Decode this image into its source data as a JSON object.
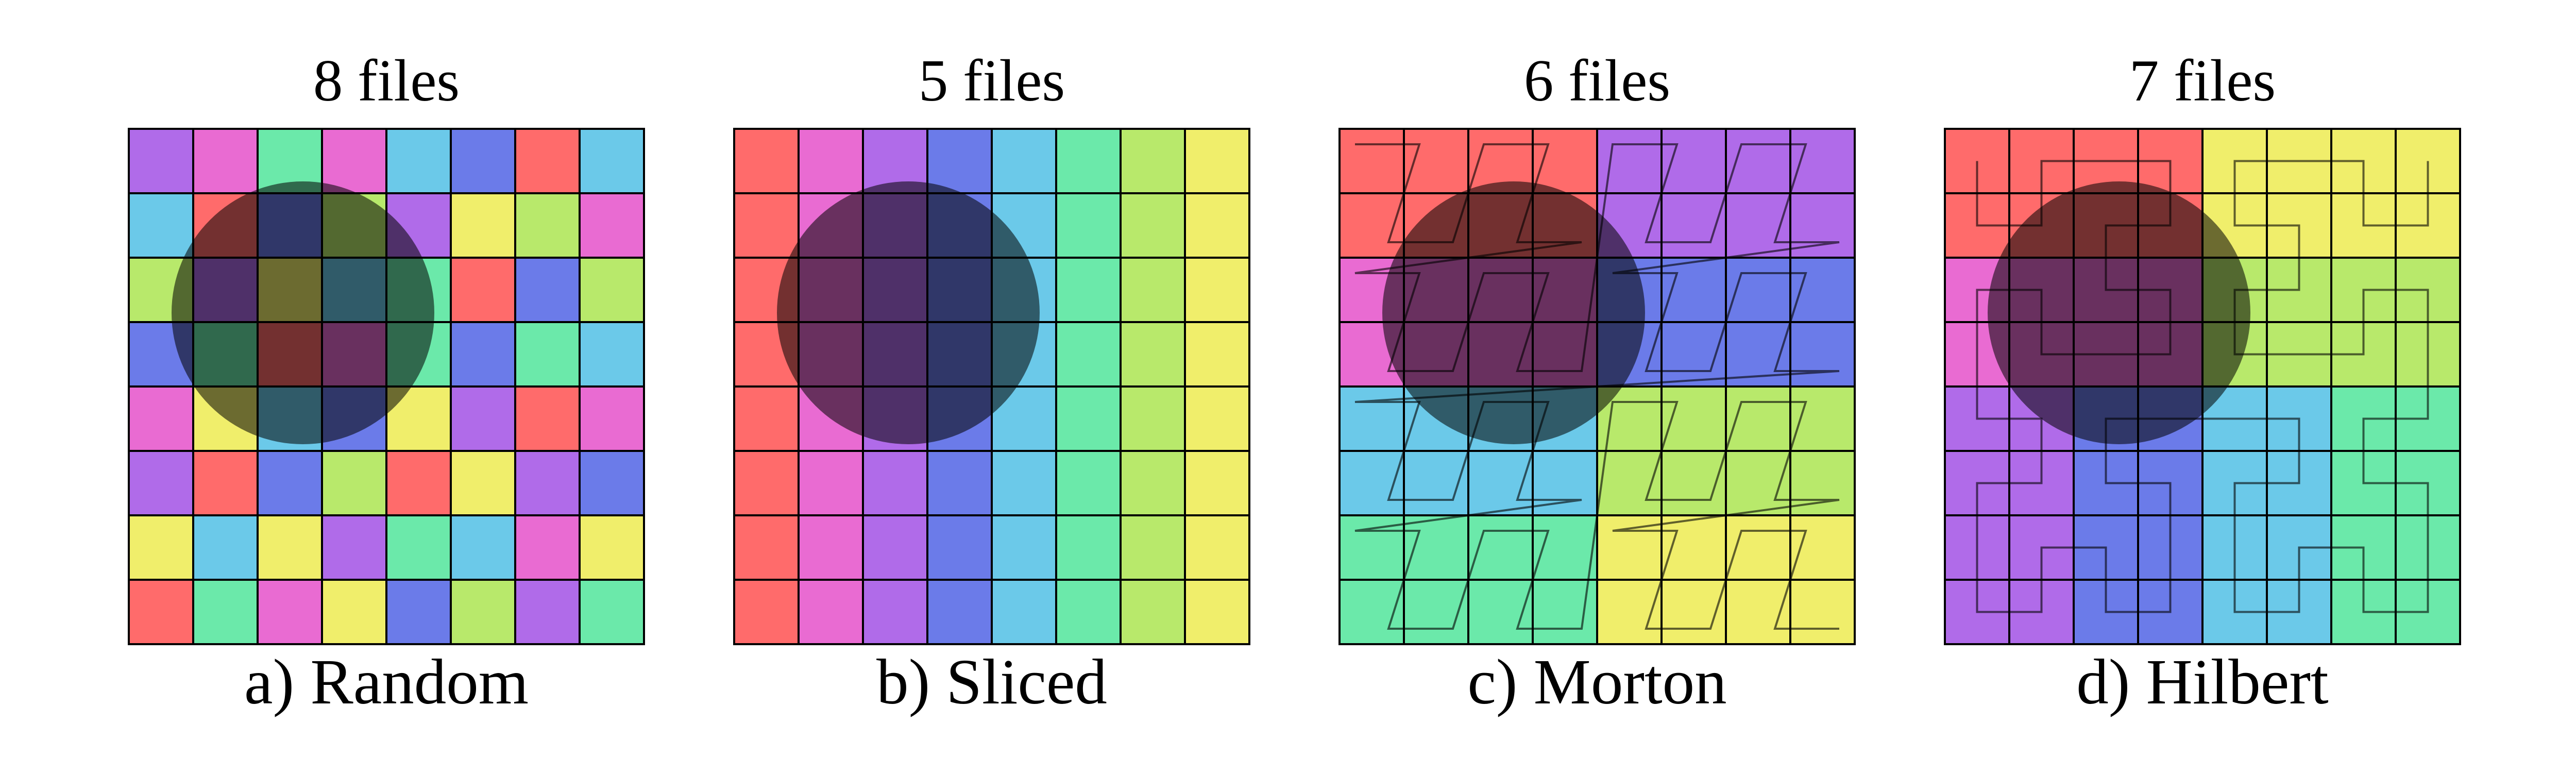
{
  "figure": {
    "palette": {
      "red": "#ff6b6b",
      "pink": "#e96bd2",
      "purple": "#b06be9",
      "blue": "#6b7be9",
      "sky": "#6bc9e9",
      "mint": "#6be9aa",
      "lime": "#b8e96b",
      "yellow": "#f0ee6b"
    },
    "overlay_color": "#000000",
    "panels": [
      {
        "id": "random",
        "title": "8 files",
        "caption": "a) Random",
        "curve": "none",
        "grid": [
          [
            "purple",
            "pink",
            "mint",
            "pink",
            "sky",
            "blue",
            "red",
            "sky"
          ],
          [
            "sky",
            "red",
            "blue",
            "lime",
            "purple",
            "yellow",
            "lime",
            "pink"
          ],
          [
            "lime",
            "purple",
            "yellow",
            "sky",
            "mint",
            "red",
            "blue",
            "lime"
          ],
          [
            "blue",
            "mint",
            "red",
            "pink",
            "mint",
            "blue",
            "mint",
            "sky"
          ],
          [
            "pink",
            "yellow",
            "sky",
            "blue",
            "yellow",
            "purple",
            "red",
            "pink"
          ],
          [
            "purple",
            "red",
            "blue",
            "lime",
            "red",
            "yellow",
            "purple",
            "blue"
          ],
          [
            "yellow",
            "sky",
            "yellow",
            "purple",
            "mint",
            "sky",
            "pink",
            "yellow"
          ],
          [
            "red",
            "mint",
            "pink",
            "yellow",
            "blue",
            "lime",
            "purple",
            "mint"
          ]
        ]
      },
      {
        "id": "sliced",
        "title": "5 files",
        "caption": "b) Sliced",
        "curve": "none",
        "grid": [
          [
            "red",
            "pink",
            "purple",
            "blue",
            "sky",
            "mint",
            "lime",
            "yellow"
          ],
          [
            "red",
            "pink",
            "purple",
            "blue",
            "sky",
            "mint",
            "lime",
            "yellow"
          ],
          [
            "red",
            "pink",
            "purple",
            "blue",
            "sky",
            "mint",
            "lime",
            "yellow"
          ],
          [
            "red",
            "pink",
            "purple",
            "blue",
            "sky",
            "mint",
            "lime",
            "yellow"
          ],
          [
            "red",
            "pink",
            "purple",
            "blue",
            "sky",
            "mint",
            "lime",
            "yellow"
          ],
          [
            "red",
            "pink",
            "purple",
            "blue",
            "sky",
            "mint",
            "lime",
            "yellow"
          ],
          [
            "red",
            "pink",
            "purple",
            "blue",
            "sky",
            "mint",
            "lime",
            "yellow"
          ],
          [
            "red",
            "pink",
            "purple",
            "blue",
            "sky",
            "mint",
            "lime",
            "yellow"
          ]
        ]
      },
      {
        "id": "morton",
        "title": "6 files",
        "caption": "c) Morton",
        "curve": "morton",
        "grid": [
          [
            "red",
            "red",
            "red",
            "red",
            "purple",
            "purple",
            "purple",
            "purple"
          ],
          [
            "red",
            "red",
            "red",
            "red",
            "purple",
            "purple",
            "purple",
            "purple"
          ],
          [
            "pink",
            "pink",
            "pink",
            "pink",
            "blue",
            "blue",
            "blue",
            "blue"
          ],
          [
            "pink",
            "pink",
            "pink",
            "pink",
            "blue",
            "blue",
            "blue",
            "blue"
          ],
          [
            "sky",
            "sky",
            "sky",
            "sky",
            "lime",
            "lime",
            "lime",
            "lime"
          ],
          [
            "sky",
            "sky",
            "sky",
            "sky",
            "lime",
            "lime",
            "lime",
            "lime"
          ],
          [
            "mint",
            "mint",
            "mint",
            "mint",
            "yellow",
            "yellow",
            "yellow",
            "yellow"
          ],
          [
            "mint",
            "mint",
            "mint",
            "mint",
            "yellow",
            "yellow",
            "yellow",
            "yellow"
          ]
        ]
      },
      {
        "id": "hilbert",
        "title": "7 files",
        "caption": "d) Hilbert",
        "curve": "hilbert",
        "grid": [
          [
            "red",
            "red",
            "red",
            "red",
            "yellow",
            "yellow",
            "yellow",
            "yellow"
          ],
          [
            "red",
            "red",
            "red",
            "red",
            "yellow",
            "yellow",
            "yellow",
            "yellow"
          ],
          [
            "pink",
            "pink",
            "pink",
            "pink",
            "lime",
            "lime",
            "lime",
            "lime"
          ],
          [
            "pink",
            "pink",
            "pink",
            "pink",
            "lime",
            "lime",
            "lime",
            "lime"
          ],
          [
            "purple",
            "purple",
            "blue",
            "blue",
            "sky",
            "sky",
            "mint",
            "mint"
          ],
          [
            "purple",
            "purple",
            "blue",
            "blue",
            "sky",
            "sky",
            "mint",
            "mint"
          ],
          [
            "purple",
            "purple",
            "blue",
            "blue",
            "sky",
            "sky",
            "mint",
            "mint"
          ],
          [
            "purple",
            "purple",
            "blue",
            "blue",
            "sky",
            "sky",
            "mint",
            "mint"
          ]
        ]
      }
    ]
  }
}
